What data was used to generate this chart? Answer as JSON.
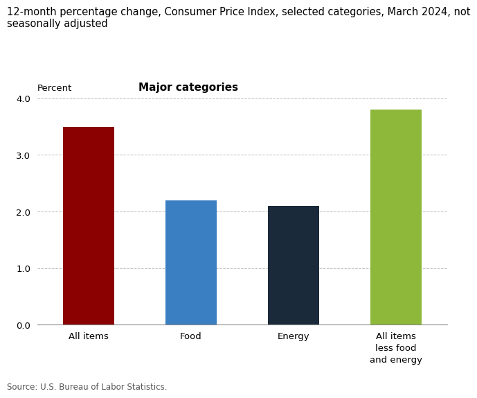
{
  "title": "12-month percentage change, Consumer Price Index, selected categories, March 2024, not\nseasonally adjusted",
  "subtitle": "Major categories",
  "ylabel": "Percent",
  "source": "Source: U.S. Bureau of Labor Statistics.",
  "categories": [
    "All items",
    "Food",
    "Energy",
    "All items\nless food\nand energy"
  ],
  "values": [
    3.5,
    2.2,
    2.1,
    3.8
  ],
  "bar_colors": [
    "#8B0000",
    "#3a7fc1",
    "#1b2a3b",
    "#8db83a"
  ],
  "ylim": [
    0,
    4.0
  ],
  "yticks": [
    0.0,
    1.0,
    2.0,
    3.0,
    4.0
  ],
  "background_color": "#ffffff",
  "title_fontsize": 10.5,
  "subtitle_fontsize": 11,
  "ylabel_fontsize": 9.5,
  "tick_fontsize": 9.5,
  "source_fontsize": 8.5,
  "bar_width": 0.5
}
